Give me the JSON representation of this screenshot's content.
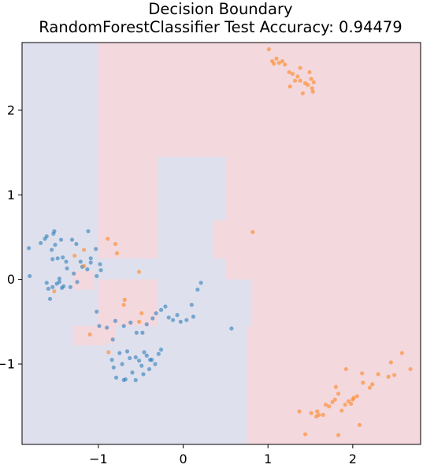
{
  "chart_data": {
    "type": "scatter",
    "title_lines": [
      "Decision Boundary",
      "RandomForestClassifier Test Accuracy: 0.94479"
    ],
    "xlabel": "",
    "ylabel": "",
    "xlim": [
      -1.9,
      2.8
    ],
    "ylim": [
      -1.95,
      2.8
    ],
    "x_ticks": [
      -1,
      0,
      1,
      2
    ],
    "x_tick_labels": [
      "−1",
      "0",
      "1",
      "2"
    ],
    "y_ticks": [
      -1,
      0,
      1,
      2
    ],
    "y_tick_labels": [
      "−1",
      "0",
      "1",
      "2"
    ],
    "grid": false,
    "legend": "none",
    "colors": {
      "class_0_point": "#1f77b4",
      "class_1_point": "#ff7f0e",
      "class_0_region": "#dfe0ee",
      "class_1_region": "#f3d8de"
    },
    "decision_regions": [
      {
        "class": 1,
        "x": [
          -1.9,
          2.8
        ],
        "y": [
          -1.95,
          2.8
        ]
      },
      {
        "class": 0,
        "x": [
          -1.9,
          -1.0
        ],
        "y": [
          -1.95,
          2.8
        ]
      },
      {
        "class": 0,
        "x": [
          -1.0,
          0.75
        ],
        "y": [
          -1.95,
          -0.55
        ]
      },
      {
        "class": 0,
        "x": [
          -0.3,
          0.5
        ],
        "y": [
          -0.55,
          1.45
        ]
      },
      {
        "class": 0,
        "x": [
          0.5,
          0.8
        ],
        "y": [
          -0.55,
          0.0
        ]
      },
      {
        "class": 0,
        "x": [
          -1.0,
          -0.3
        ],
        "y": [
          0.0,
          0.25
        ]
      },
      {
        "class": 1,
        "x": [
          -1.0,
          -0.8
        ],
        "y": [
          -0.75,
          -0.5
        ]
      },
      {
        "class": 1,
        "x": [
          -1.3,
          -0.9
        ],
        "y": [
          -0.78,
          -0.55
        ]
      },
      {
        "class": 1,
        "x": [
          -0.85,
          -0.3
        ],
        "y": [
          -0.4,
          0.0
        ]
      },
      {
        "class": 1,
        "x": [
          -1.3,
          -1.05
        ],
        "y": [
          -0.12,
          0.1
        ]
      },
      {
        "class": 1,
        "x": [
          0.35,
          0.8
        ],
        "y": [
          0.25,
          0.7
        ]
      },
      {
        "class": 0,
        "x": [
          -1.3,
          -1.2
        ],
        "y": [
          1.5,
          2.8
        ]
      }
    ],
    "series": [
      {
        "class": 0,
        "points": [
          [
            -1.82,
            0.37
          ],
          [
            -1.68,
            0.43
          ],
          [
            -1.63,
            0.48
          ],
          [
            -1.61,
            0.51
          ],
          [
            -1.55,
            0.35
          ],
          [
            -1.53,
            0.54
          ],
          [
            -1.52,
            0.57
          ],
          [
            -1.51,
            0.41
          ],
          [
            -1.54,
            0.24
          ],
          [
            -1.48,
            0.25
          ],
          [
            -1.44,
            0.47
          ],
          [
            -1.42,
            0.26
          ],
          [
            -1.38,
            0.21
          ],
          [
            -1.31,
            0.47
          ],
          [
            -1.26,
            0.42
          ],
          [
            -1.21,
            0.21
          ],
          [
            -1.12,
            0.57
          ],
          [
            -1.09,
            0.25
          ],
          [
            -1.03,
            0.36
          ],
          [
            -0.98,
            0.18
          ],
          [
            -1.81,
            0.04
          ],
          [
            -1.61,
            -0.04
          ],
          [
            -1.59,
            -0.11
          ],
          [
            -1.57,
            -0.23
          ],
          [
            -1.54,
            -0.09
          ],
          [
            -1.49,
            -0.05
          ],
          [
            -1.46,
            -0.03
          ],
          [
            -1.46,
            0.01
          ],
          [
            -1.43,
            -0.1
          ],
          [
            -1.41,
            -0.08
          ],
          [
            -1.37,
            0.13
          ],
          [
            -1.33,
            -0.09
          ],
          [
            -1.29,
            0.07
          ],
          [
            -1.25,
            -0.03
          ],
          [
            -1.19,
            0.15
          ],
          [
            -1.13,
            0.12
          ],
          [
            -1.09,
            0.2
          ],
          [
            -1.02,
            0.04
          ],
          [
            -0.97,
            0.11
          ],
          [
            -1.02,
            -0.38
          ],
          [
            -0.99,
            -0.55
          ],
          [
            -0.9,
            -0.57
          ],
          [
            -0.83,
            -0.71
          ],
          [
            -0.8,
            -0.49
          ],
          [
            -0.7,
            -0.55
          ],
          [
            -0.62,
            -0.51
          ],
          [
            -0.55,
            -0.63
          ],
          [
            -0.48,
            -0.63
          ],
          [
            -0.43,
            -0.53
          ],
          [
            -0.36,
            -0.46
          ],
          [
            -0.32,
            -0.4
          ],
          [
            -0.26,
            -0.36
          ],
          [
            -0.21,
            -0.32
          ],
          [
            -0.17,
            -0.45
          ],
          [
            -0.12,
            -0.48
          ],
          [
            -0.07,
            -0.42
          ],
          [
            -0.03,
            -0.5
          ],
          [
            0.04,
            -0.48
          ],
          [
            0.1,
            -0.3
          ],
          [
            0.12,
            -0.44
          ],
          [
            0.17,
            -0.12
          ],
          [
            0.21,
            -0.04
          ],
          [
            0.57,
            -0.58
          ],
          [
            -0.84,
            -0.95
          ],
          [
            -0.82,
            -1.04
          ],
          [
            -0.75,
            -0.87
          ],
          [
            -0.72,
            -1.0
          ],
          [
            -0.68,
            -1.18
          ],
          [
            -0.66,
            -0.85
          ],
          [
            -0.63,
            -0.93
          ],
          [
            -0.6,
            -1.1
          ],
          [
            -0.56,
            -0.92
          ],
          [
            -0.52,
            -0.96
          ],
          [
            -0.49,
            -1.02
          ],
          [
            -0.46,
            -0.86
          ],
          [
            -0.43,
            -0.9
          ],
          [
            -0.4,
            -1.06
          ],
          [
            -0.37,
            -0.95
          ],
          [
            -0.33,
            -1.0
          ],
          [
            -0.29,
            -0.88
          ],
          [
            -0.26,
            -0.83
          ],
          [
            -0.7,
            -1.19
          ],
          [
            -0.56,
            -1.19
          ],
          [
            -0.79,
            -1.16
          ],
          [
            -0.47,
            -1.12
          ],
          [
            -0.39,
            -0.95
          ]
        ]
      },
      {
        "class": 1,
        "points": [
          [
            1.01,
            2.72
          ],
          [
            1.05,
            2.58
          ],
          [
            1.07,
            2.55
          ],
          [
            1.1,
            2.61
          ],
          [
            1.13,
            2.56
          ],
          [
            1.17,
            2.58
          ],
          [
            1.2,
            2.54
          ],
          [
            1.25,
            2.45
          ],
          [
            1.29,
            2.43
          ],
          [
            1.32,
            2.35
          ],
          [
            1.35,
            2.4
          ],
          [
            1.38,
            2.5
          ],
          [
            1.41,
            2.2
          ],
          [
            1.44,
            2.32
          ],
          [
            1.47,
            2.3
          ],
          [
            1.49,
            2.45
          ],
          [
            1.51,
            2.37
          ],
          [
            1.52,
            2.26
          ],
          [
            1.53,
            2.22
          ],
          [
            1.54,
            2.33
          ],
          [
            1.26,
            2.28
          ],
          [
            1.38,
            2.35
          ],
          [
            -0.89,
            0.48
          ],
          [
            -0.8,
            0.42
          ],
          [
            -0.78,
            0.31
          ],
          [
            -1.17,
            0.35
          ],
          [
            -1.17,
            0.16
          ],
          [
            -1.28,
            0.28
          ],
          [
            -1.52,
            -0.14
          ],
          [
            -0.52,
            0.09
          ],
          [
            -0.69,
            -0.24
          ],
          [
            -0.52,
            -0.5
          ],
          [
            -0.88,
            -0.86
          ],
          [
            -1.1,
            -0.65
          ],
          [
            0.82,
            0.56
          ],
          [
            -0.7,
            -0.3
          ],
          [
            -0.49,
            -0.4
          ],
          [
            1.37,
            -1.56
          ],
          [
            1.44,
            -1.83
          ],
          [
            1.51,
            -1.58
          ],
          [
            1.57,
            -1.62
          ],
          [
            1.6,
            -1.6
          ],
          [
            1.65,
            -1.6
          ],
          [
            1.68,
            -1.48
          ],
          [
            1.72,
            -1.5
          ],
          [
            1.76,
            -1.45
          ],
          [
            1.79,
            -1.42
          ],
          [
            1.8,
            -1.27
          ],
          [
            1.83,
            -1.35
          ],
          [
            1.87,
            -1.55
          ],
          [
            1.91,
            -1.48
          ],
          [
            1.92,
            -1.06
          ],
          [
            1.95,
            -1.44
          ],
          [
            1.98,
            -1.47
          ],
          [
            2.01,
            -1.4
          ],
          [
            2.05,
            -1.38
          ],
          [
            2.08,
            -1.72
          ],
          [
            2.11,
            -1.11
          ],
          [
            2.12,
            -1.22
          ],
          [
            2.2,
            -1.28
          ],
          [
            2.23,
            -1.24
          ],
          [
            2.3,
            -1.12
          ],
          [
            2.42,
            -1.15
          ],
          [
            2.45,
            -0.98
          ],
          [
            2.49,
            -1.13
          ],
          [
            2.58,
            -0.87
          ],
          [
            2.68,
            -1.06
          ],
          [
            1.83,
            -1.84
          ],
          [
            1.58,
            -1.56
          ],
          [
            2.0,
            -1.42
          ]
        ]
      }
    ]
  }
}
